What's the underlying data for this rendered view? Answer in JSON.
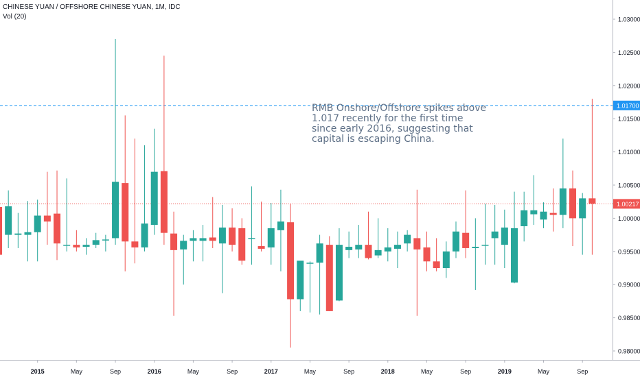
{
  "header": {
    "title": "CHINESE YUAN / OFFSHORE CHINESE YUAN, 1M, IDC",
    "volume_label": "Vol (20)"
  },
  "annotation": {
    "lines": [
      "RMB Onshore/Offshore spikes above",
      "1.017 recently for the first time",
      "since early 2016, suggesting that",
      "capital is escaping China."
    ]
  },
  "colors": {
    "up": "#26a69a",
    "down": "#ef5350",
    "reference_line": "#2196f3",
    "price_line": "#ef5350"
  },
  "chart_data": {
    "type": "candlestick",
    "title": "",
    "timeframe": "1M",
    "y_axis": {
      "position": "right",
      "range": [
        0.9775,
        1.0315
      ],
      "ticks": [
        "1.03000",
        "1.02500",
        "1.02000",
        "1.01500",
        "1.01000",
        "1.00500",
        "1.00000",
        "0.99500",
        "0.99000",
        "0.98500",
        "0.98000"
      ]
    },
    "x_axis": {
      "ticks": [
        "2015",
        "May",
        "Sep",
        "2016",
        "May",
        "Sep",
        "2017",
        "May",
        "Sep",
        "2018",
        "May",
        "Sep",
        "2019",
        "May",
        "Sep"
      ],
      "bold_ticks": [
        "2015",
        "2016",
        "2017",
        "2018",
        "2019"
      ]
    },
    "reference_lines": [
      {
        "value": 1.017,
        "label": "1.01700",
        "style": "dashed"
      },
      {
        "value": 1.00217,
        "label": "1.00217",
        "style": "dotted"
      }
    ],
    "candles": [
      {
        "o": 1.0017,
        "h": 1.0025,
        "l": 0.9941,
        "c": 0.9945
      },
      {
        "o": 0.9975,
        "h": 1.0042,
        "l": 0.9955,
        "c": 1.0018
      },
      {
        "o": 0.9975,
        "h": 1.0008,
        "l": 0.9955,
        "c": 0.9977
      },
      {
        "o": 0.9975,
        "h": 1.0026,
        "l": 0.9935,
        "c": 0.9979
      },
      {
        "o": 0.9979,
        "h": 1.0028,
        "l": 0.9935,
        "c": 1.0004
      },
      {
        "o": 1.0004,
        "h": 1.007,
        "l": 0.996,
        "c": 0.9995
      },
      {
        "o": 1.0007,
        "h": 1.0072,
        "l": 0.9937,
        "c": 0.9962
      },
      {
        "o": 0.996,
        "h": 1.006,
        "l": 0.995,
        "c": 0.996
      },
      {
        "o": 0.996,
        "h": 0.9982,
        "l": 0.995,
        "c": 0.9956
      },
      {
        "o": 0.9957,
        "h": 0.997,
        "l": 0.9945,
        "c": 0.996
      },
      {
        "o": 0.996,
        "h": 0.9978,
        "l": 0.9955,
        "c": 0.9967
      },
      {
        "o": 0.9967,
        "h": 0.9975,
        "l": 0.995,
        "c": 0.9968
      },
      {
        "o": 0.997,
        "h": 1.027,
        "l": 0.996,
        "c": 1.0055
      },
      {
        "o": 1.0053,
        "h": 1.0155,
        "l": 0.992,
        "c": 0.9965
      },
      {
        "o": 0.9965,
        "h": 1.012,
        "l": 0.9932,
        "c": 0.9956
      },
      {
        "o": 0.9956,
        "h": 1.011,
        "l": 0.995,
        "c": 0.9992
      },
      {
        "o": 0.999,
        "h": 1.0135,
        "l": 0.9975,
        "c": 1.007
      },
      {
        "o": 1.0071,
        "h": 1.0245,
        "l": 0.996,
        "c": 0.9978
      },
      {
        "o": 0.9977,
        "h": 1.001,
        "l": 0.9853,
        "c": 0.9952
      },
      {
        "o": 0.9953,
        "h": 0.9975,
        "l": 0.99,
        "c": 0.9966
      },
      {
        "o": 0.9966,
        "h": 0.9982,
        "l": 0.9935,
        "c": 0.997
      },
      {
        "o": 0.9966,
        "h": 0.999,
        "l": 0.9935,
        "c": 0.997
      },
      {
        "o": 0.9971,
        "h": 1.0032,
        "l": 0.9955,
        "c": 0.9966
      },
      {
        "o": 0.9962,
        "h": 1.002,
        "l": 0.9887,
        "c": 0.9986
      },
      {
        "o": 0.9986,
        "h": 1.0015,
        "l": 0.995,
        "c": 0.996
      },
      {
        "o": 0.9985,
        "h": 1.0,
        "l": 0.993,
        "c": 0.9936
      },
      {
        "o": 0.997,
        "h": 1.0048,
        "l": 0.993,
        "c": 0.997
      },
      {
        "o": 0.9958,
        "h": 1.0025,
        "l": 0.995,
        "c": 0.9954
      },
      {
        "o": 0.9956,
        "h": 1.0023,
        "l": 0.993,
        "c": 0.9985
      },
      {
        "o": 0.9982,
        "h": 1.0043,
        "l": 0.992,
        "c": 0.9995
      },
      {
        "o": 0.9994,
        "h": 1.0022,
        "l": 0.9805,
        "c": 0.9878
      },
      {
        "o": 0.9878,
        "h": 0.9935,
        "l": 0.986,
        "c": 0.9936
      },
      {
        "o": 0.9932,
        "h": 0.9935,
        "l": 0.9858,
        "c": 0.9933
      },
      {
        "o": 0.9933,
        "h": 0.9975,
        "l": 0.9855,
        "c": 0.9962
      },
      {
        "o": 0.996,
        "h": 0.9973,
        "l": 0.986,
        "c": 0.986
      },
      {
        "o": 0.9876,
        "h": 0.9985,
        "l": 0.9875,
        "c": 0.996
      },
      {
        "o": 0.9952,
        "h": 0.998,
        "l": 0.994,
        "c": 0.9957
      },
      {
        "o": 0.9953,
        "h": 0.999,
        "l": 0.994,
        "c": 0.996
      },
      {
        "o": 0.996,
        "h": 1.001,
        "l": 0.9938,
        "c": 0.994
      },
      {
        "o": 0.9944,
        "h": 1.0,
        "l": 0.994,
        "c": 0.9952
      },
      {
        "o": 0.995,
        "h": 0.9985,
        "l": 0.9935,
        "c": 0.9956
      },
      {
        "o": 0.9954,
        "h": 0.998,
        "l": 0.9925,
        "c": 0.996
      },
      {
        "o": 0.9962,
        "h": 0.9982,
        "l": 0.995,
        "c": 0.9975
      },
      {
        "o": 0.997,
        "h": 1.0043,
        "l": 0.9853,
        "c": 0.9953
      },
      {
        "o": 0.9956,
        "h": 0.998,
        "l": 0.992,
        "c": 0.9935
      },
      {
        "o": 0.9935,
        "h": 0.997,
        "l": 0.992,
        "c": 0.9925
      },
      {
        "o": 0.9925,
        "h": 0.9965,
        "l": 0.991,
        "c": 0.995
      },
      {
        "o": 0.995,
        "h": 0.9995,
        "l": 0.994,
        "c": 0.998
      },
      {
        "o": 0.9978,
        "h": 1.0042,
        "l": 0.994,
        "c": 0.9955
      },
      {
        "o": 0.9955,
        "h": 1.0,
        "l": 0.9892,
        "c": 0.9957
      },
      {
        "o": 0.996,
        "h": 1.0022,
        "l": 0.993,
        "c": 0.996
      },
      {
        "o": 0.997,
        "h": 1.002,
        "l": 0.993,
        "c": 0.998
      },
      {
        "o": 0.996,
        "h": 1.0013,
        "l": 0.9925,
        "c": 0.9986
      },
      {
        "o": 0.9903,
        "h": 1.004,
        "l": 0.9902,
        "c": 0.9985
      },
      {
        "o": 0.9988,
        "h": 1.004,
        "l": 0.9965,
        "c": 1.0012
      },
      {
        "o": 1.0006,
        "h": 1.0065,
        "l": 0.999,
        "c": 1.0012
      },
      {
        "o": 0.9998,
        "h": 1.0024,
        "l": 0.9985,
        "c": 1.001
      },
      {
        "o": 1.0008,
        "h": 1.0045,
        "l": 0.998,
        "c": 1.0005
      },
      {
        "o": 1.0005,
        "h": 1.012,
        "l": 0.9985,
        "c": 1.0045
      },
      {
        "o": 1.0045,
        "h": 1.0072,
        "l": 0.9958,
        "c": 1.0
      },
      {
        "o": 1.0,
        "h": 1.0038,
        "l": 0.9945,
        "c": 1.003
      },
      {
        "o": 1.003,
        "h": 1.018,
        "l": 0.9945,
        "c": 1.0022
      }
    ]
  }
}
